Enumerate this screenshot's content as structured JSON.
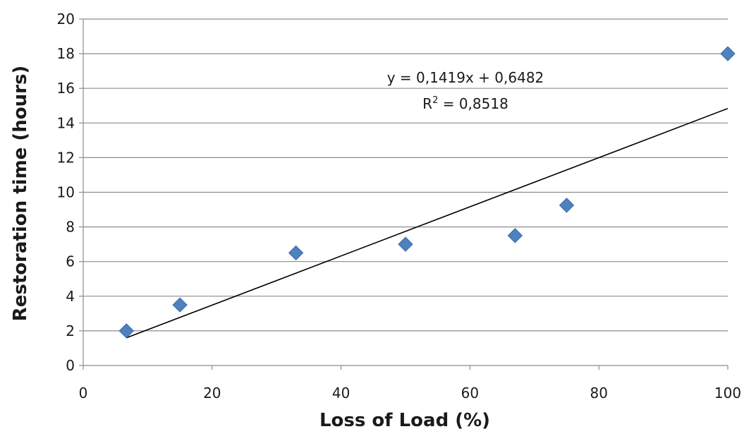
{
  "chart_data": {
    "type": "scatter",
    "title": "",
    "xlabel": "Loss of Load (%)",
    "ylabel": "Restoration time (hours)",
    "xlim": [
      0,
      100
    ],
    "ylim": [
      0,
      20
    ],
    "xticks": [
      "0",
      "20",
      "40",
      "60",
      "80",
      "100"
    ],
    "yticks": [
      "0",
      "2",
      "4",
      "6",
      "8",
      "10",
      "12",
      "14",
      "16",
      "18",
      "20"
    ],
    "grid": "horizontal",
    "legend": "none",
    "marker": "diamond",
    "marker_color": "#4f81bd",
    "series": [
      {
        "x": [
          6.7,
          15,
          33,
          50,
          67,
          75,
          100
        ],
        "y": [
          2.0,
          3.5,
          6.5,
          7.0,
          7.5,
          9.25,
          18.0
        ]
      }
    ],
    "trendline": {
      "type": "linear",
      "slope": 0.1419,
      "intercept": 0.6482,
      "x_range": [
        6.7,
        100
      ],
      "color": "#000000",
      "equation_label": "y = 0,1419x + 0,6482",
      "r_squared_prefix": "R",
      "r_squared_exponent": "2",
      "r_squared_value": " = 0,8518"
    }
  }
}
